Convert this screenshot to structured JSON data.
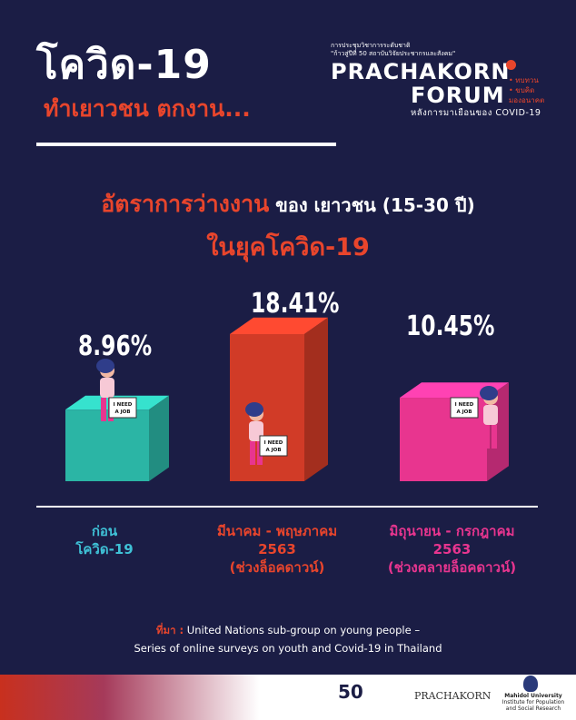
{
  "header": {
    "title_line1": "โควิด-19",
    "title_line2": "ทำเยาวชน ตกงาน..."
  },
  "forum": {
    "small_line1": "การประชุมวิชาการระดับชาติ",
    "small_line2": "\"ก้าวสู่ปีที่ 50 สถาบันวิจัยประชากรและสังคม\"",
    "name_line1": "PRACHAKORN",
    "name_line2": "FORUM",
    "tags": [
      "• ทบทวน",
      "• ขบคิด",
      "  มองอนาคต"
    ],
    "subtitle": "หลังการมาเยือนของ COVID-19"
  },
  "heading": {
    "part_red": "อัตราการว่างงาน",
    "part_white": " ของ เยาวชน (15-30 ปี)",
    "line2": "ในยุคโควิด-19"
  },
  "colors": {
    "background": "#1b1d45",
    "accent_red": "#e8452c",
    "teal": "#2bb5a5",
    "pink": "#e8358f"
  },
  "chart_data": {
    "type": "bar",
    "categories": [
      "ก่อน โควิด-19",
      "มีนาคม - พฤษภาคม 2563 (ช่วงล็อคดาวน์)",
      "มิถุนายน - กรกฎาคม 2563 (ช่วงคลายล็อคดาวน์)"
    ],
    "values": [
      8.96,
      18.41,
      10.45
    ],
    "value_labels": [
      "8.96%",
      "18.41%",
      "10.45%"
    ],
    "category_lines": [
      [
        "ก่อน",
        "โควิด-19"
      ],
      [
        "มีนาคม - พฤษภาคม",
        "2563",
        "(ช่วงล็อคดาวน์)"
      ],
      [
        "มิถุนายน - กรกฎาคม",
        "2563",
        "(ช่วงคลายล็อคดาวน์)"
      ]
    ],
    "bar_colors": [
      "#2bb5a5",
      "#d13b27",
      "#e8358f"
    ],
    "category_colors": [
      "#3fc1d6",
      "#e8452c",
      "#e8358f"
    ],
    "sign_text": "I NEED A JOB"
  },
  "source": {
    "label": "ที่มา :",
    "line1": " United Nations sub-group on young people –",
    "line2": "Series of online surveys on youth and Covid-19 in Thailand"
  },
  "footer": {
    "logo1": "50",
    "logo2": "PRACHAKORN",
    "logo3_line1": "Mahidol University",
    "logo3_line2": "Institute for Population",
    "logo3_line3": "and Social Research"
  }
}
